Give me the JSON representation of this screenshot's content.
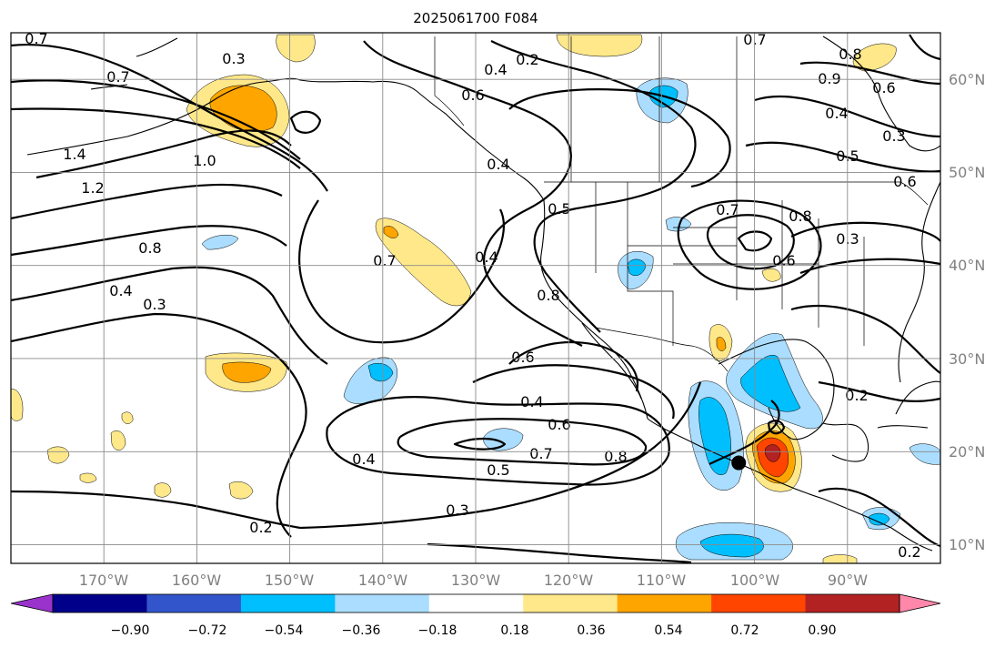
{
  "title": "2025061700 F084",
  "colors": {
    "background": "#ffffff",
    "grid": "#8a8a8a",
    "tick_label": "#808080",
    "contour": "#000000",
    "marker": "#000000"
  },
  "map": {
    "projection": "PlateCarree",
    "lon_range": [
      -180,
      -80
    ],
    "lat_range": [
      8,
      65
    ],
    "lon_ticks": [
      "170°W",
      "160°W",
      "150°W",
      "140°W",
      "130°W",
      "120°W",
      "110°W",
      "100°W",
      "90°W"
    ],
    "lat_ticks": [
      "10°N",
      "20°N",
      "30°N",
      "40°N",
      "50°N",
      "60°N"
    ],
    "grid": true,
    "marker": {
      "lon": -101.7,
      "lat": 18.8
    }
  },
  "contour_labels": [
    "0.7",
    "0.3",
    "0.7",
    "1.4",
    "1.2",
    "1.0",
    "0.8",
    "0.4",
    "0.3",
    "0.2",
    "0.4",
    "0.7",
    "0.5",
    "0.4",
    "0.6",
    "0.8",
    "0.4",
    "0.6",
    "0.7",
    "0.8",
    "0.5",
    "0.4",
    "0.3",
    "0.2",
    "0.7",
    "0.8",
    "0.9",
    "0.6",
    "0.3",
    "0.5",
    "0.6",
    "0.2",
    "0.2",
    "0.4",
    "0.4",
    "0.6",
    "0.7",
    "0.8",
    "0.6",
    "0.3"
  ],
  "colorbar": {
    "orientation": "horizontal",
    "extend": "both",
    "ticks": [
      "−0.90",
      "−0.72",
      "−0.54",
      "−0.36",
      "−0.18",
      "0.18",
      "0.36",
      "0.54",
      "0.72",
      "0.90"
    ],
    "under_color": "#9933cc",
    "over_color": "#ff88aa",
    "colors": [
      "#00008b",
      "#3355cc",
      "#00bfff",
      "#aaddff",
      "#ffffff",
      "#ffe88a",
      "#ffa500",
      "#ff4500",
      "#b22222"
    ]
  }
}
